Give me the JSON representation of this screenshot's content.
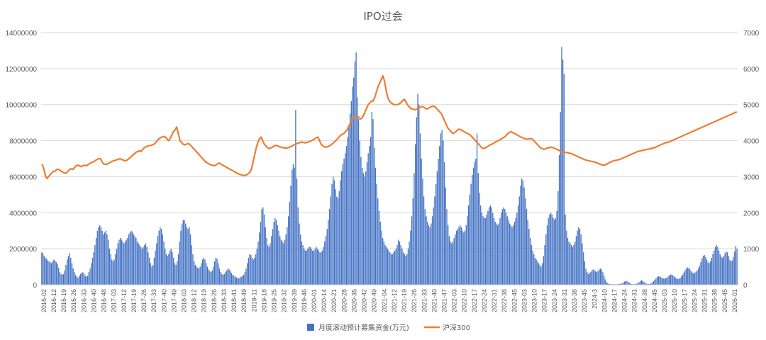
{
  "chart_data": {
    "type": "bar+line",
    "title": "IPO过会",
    "xlabel": "",
    "ylabel": "",
    "y_left": {
      "min": 0,
      "max": 14000000,
      "ticks": [
        "0",
        "2000000",
        "4000000",
        "6000000",
        "8000000",
        "10000000",
        "12000000",
        "14000000"
      ]
    },
    "y_right": {
      "min": 0,
      "max": 7000,
      "ticks": [
        "0",
        "1000",
        "2000",
        "3000",
        "4000",
        "5000",
        "6000",
        "7000"
      ]
    },
    "grid": true,
    "legend_position": "bottom",
    "x_start_week": "2016-02",
    "x_tick_labels": [
      "2016-02",
      "2016-12",
      "2016-19",
      "2016-26",
      "2016-33",
      "2016-40",
      "2016-48",
      "2017-03",
      "2017-12",
      "2017-19",
      "2017-26",
      "2017-33",
      "2017-40",
      "2017-49",
      "2018-03",
      "2018-12",
      "2018-19",
      "2018-26",
      "2018-33",
      "2018-41",
      "2018-49",
      "2019-11",
      "2019-18",
      "2019-25",
      "2019-32",
      "2019-39",
      "2019-46",
      "2020-01",
      "2020-14",
      "2020-21",
      "2020-28",
      "2020-35",
      "2020-42",
      "2020-49",
      "2021-04",
      "2021-12",
      "2021-19",
      "2021-26",
      "2021-33",
      "2021-40",
      "2021-47",
      "2022-03",
      "2022-10",
      "2022-17",
      "2022-24",
      "2022-31",
      "2022-38",
      "2022-45",
      "2023-03",
      "2023-10",
      "2023-17",
      "2023-24",
      "2023-31",
      "2023-38",
      "2023-45",
      "2024-3",
      "2024-10",
      "2024-17",
      "2024-24",
      "2024-31",
      "2024-38",
      "2024-45",
      "2025-03",
      "2025-10",
      "2025-17",
      "2025-24",
      "2025-31",
      "2025-38",
      "2025-45",
      "2026-01"
    ],
    "series": [
      {
        "name": "月度滚动预计募集资金(万元)",
        "type": "bar",
        "axis": "left",
        "color": "#4472C4",
        "values": [
          1800000,
          1750000,
          1600000,
          1500000,
          1450000,
          1350000,
          1300000,
          1250000,
          1200000,
          1300000,
          1400000,
          1350000,
          1250000,
          1150000,
          950000,
          700000,
          600000,
          550000,
          600000,
          800000,
          1100000,
          1400000,
          1600000,
          1750000,
          1500000,
          1200000,
          900000,
          700000,
          550000,
          450000,
          400000,
          500000,
          600000,
          650000,
          700000,
          600000,
          500000,
          450000,
          500000,
          700000,
          900000,
          1200000,
          1500000,
          1800000,
          2200000,
          2600000,
          3000000,
          3200000,
          3300000,
          3200000,
          3000000,
          2800000,
          2900000,
          3000000,
          2800000,
          2500000,
          2000000,
          1700000,
          1400000,
          1300000,
          1400000,
          1700000,
          2000000,
          2300000,
          2500000,
          2600000,
          2500000,
          2400000,
          2300000,
          2400000,
          2500000,
          2600000,
          2800000,
          2900000,
          3000000,
          2950000,
          2800000,
          2700000,
          2600000,
          2400000,
          2300000,
          2200000,
          2100000,
          2000000,
          2100000,
          2200000,
          2300000,
          2100000,
          1800000,
          1500000,
          1200000,
          1000000,
          1100000,
          1500000,
          1900000,
          2300000,
          2700000,
          3000000,
          3200000,
          3100000,
          2800000,
          2400000,
          2000000,
          1700000,
          1600000,
          1700000,
          1900000,
          2000000,
          1800000,
          1500000,
          1200000,
          1100000,
          1300000,
          1700000,
          2400000,
          3000000,
          3400000,
          3600000,
          3600000,
          3400000,
          3200000,
          3100000,
          3200000,
          2800000,
          2200000,
          1700000,
          1300000,
          1100000,
          1000000,
          950000,
          900000,
          1000000,
          1200000,
          1400000,
          1500000,
          1400000,
          1200000,
          1000000,
          850000,
          750000,
          700000,
          800000,
          1000000,
          1300000,
          1500000,
          1450000,
          1200000,
          900000,
          700000,
          600000,
          550000,
          600000,
          700000,
          800000,
          900000,
          850000,
          750000,
          650000,
          550000,
          500000,
          450000,
          400000,
          380000,
          350000,
          400000,
          450000,
          500000,
          550000,
          700000,
          900000,
          1200000,
          1500000,
          1700000,
          1650000,
          1500000,
          1400000,
          1500000,
          1700000,
          2000000,
          2400000,
          2900000,
          3500000,
          4200000,
          4300000,
          3900000,
          3200000,
          2600000,
          2200000,
          2100000,
          2300000,
          2700000,
          3100000,
          3500000,
          3700000,
          3600000,
          3300000,
          3000000,
          2700000,
          2500000,
          2400000,
          2300000,
          2500000,
          2800000,
          3200000,
          3800000,
          4600000,
          5500000,
          6400000,
          6700000,
          6500000,
          9700000,
          5900000,
          4300000,
          3400000,
          2800000,
          2400000,
          2200000,
          2000000,
          1900000,
          1900000,
          2000000,
          2100000,
          2100000,
          2000000,
          1900000,
          1900000,
          2000000,
          2100000,
          2000000,
          1900000,
          1800000,
          1800000,
          1900000,
          2100000,
          2400000,
          2700000,
          3100000,
          3600000,
          4200000,
          4900000,
          5600000,
          6000000,
          5800000,
          5300000,
          4900000,
          4800000,
          5200000,
          5800000,
          6300000,
          6700000,
          7000000,
          7300000,
          7700000,
          8200000,
          8800000,
          9500000,
          10200000,
          11000000,
          11500000,
          12400000,
          12900000,
          10400000,
          9200000,
          8000000,
          7100000,
          6500000,
          6200000,
          6000000,
          6300000,
          6800000,
          7300000,
          7700000,
          8200000,
          9600000,
          9200000,
          7600000,
          6500000,
          5600000,
          4800000,
          4100000,
          3500000,
          3000000,
          2600000,
          2400000,
          2200000,
          2100000,
          2000000,
          1900000,
          1800000,
          1700000,
          1700000,
          1800000,
          1900000,
          2000000,
          2200000,
          2500000,
          2400000,
          2200000,
          2000000,
          1800000,
          1700000,
          1600000,
          1700000,
          2000000,
          2400000,
          3000000,
          3800000,
          4800000,
          6200000,
          7800000,
          9300000,
          10600000,
          10000000,
          8400000,
          7000000,
          5900000,
          4900000,
          4200000,
          3800000,
          3500000,
          3300000,
          3200000,
          3400000,
          3800000,
          4300000,
          4900000,
          5600000,
          6300000,
          7000000,
          7700000,
          8400000,
          8600000,
          8000000,
          6800000,
          5400000,
          4200000,
          3300000,
          2700000,
          2400000,
          2300000,
          2400000,
          2600000,
          2800000,
          3000000,
          3100000,
          3200000,
          3300000,
          3200000,
          3000000,
          2900000,
          3000000,
          3300000,
          3800000,
          4400000,
          5000000,
          5600000,
          6100000,
          6500000,
          6800000,
          7000000,
          8400000,
          6200000,
          5100000,
          4400000,
          4000000,
          3800000,
          3700000,
          3700000,
          3900000,
          4100000,
          4300000,
          4400000,
          4300000,
          4000000,
          3700000,
          3500000,
          3400000,
          3300000,
          3400000,
          3700000,
          4000000,
          4200000,
          4300000,
          4200000,
          4000000,
          3800000,
          3600000,
          3400000,
          3300000,
          3200000,
          3300000,
          3500000,
          3700000,
          4000000,
          4400000,
          4900000,
          5500000,
          5900000,
          5800000,
          5400000,
          4800000,
          4200000,
          3600000,
          3100000,
          2600000,
          2200000,
          1900000,
          1700000,
          1500000,
          1400000,
          1300000,
          1200000,
          1100000,
          1000000,
          1200000,
          1600000,
          2200000,
          2800000,
          3300000,
          3700000,
          3900000,
          4000000,
          3900000,
          3700000,
          3600000,
          3700000,
          4100000,
          5200000,
          7200000,
          9600000,
          13200000,
          12500000,
          11700000,
          3900000,
          3000000,
          2600000,
          2400000,
          2300000,
          2200000,
          2100000,
          2200000,
          2400000,
          2700000,
          3000000,
          3200000,
          3100000,
          2800000,
          2300000,
          1800000,
          1300000,
          900000,
          700000,
          600000,
          650000,
          700000,
          800000,
          850000,
          800000,
          750000,
          700000,
          750000,
          850000,
          900000,
          850000,
          700000,
          500000,
          300000,
          150000,
          80000,
          50000,
          40000,
          30000,
          30000,
          30000,
          30000,
          30000,
          30000,
          40000,
          50000,
          60000,
          80000,
          120000,
          180000,
          220000,
          200000,
          150000,
          100000,
          60000,
          40000,
          30000,
          30000,
          40000,
          60000,
          90000,
          140000,
          200000,
          250000,
          220000,
          160000,
          100000,
          60000,
          40000,
          40000,
          50000,
          80000,
          130000,
          200000,
          280000,
          360000,
          430000,
          470000,
          460000,
          420000,
          380000,
          350000,
          340000,
          360000,
          400000,
          460000,
          520000,
          560000,
          560000,
          520000,
          460000,
          400000,
          350000,
          320000,
          330000,
          380000,
          460000,
          560000,
          680000,
          800000,
          900000,
          960000,
          940000,
          860000,
          760000,
          680000,
          640000,
          660000,
          720000,
          800000,
          900000,
          1050000,
          1250000,
          1450000,
          1600000,
          1650000,
          1550000,
          1400000,
          1250000,
          1200000,
          1300000,
          1500000,
          1700000,
          1900000,
          2100000,
          2200000,
          2100000,
          1900000,
          1700000,
          1550000,
          1500000,
          1600000,
          1750000,
          1850000,
          1800000,
          1600000,
          1400000,
          1300000,
          1350000,
          1550000,
          1850000,
          2150000,
          2000000
        ]
      },
      {
        "name": "沪深300",
        "type": "line",
        "axis": "right",
        "color": "#ED7D31",
        "values": [
          3350,
          3250,
          3050,
          2950,
          3000,
          3050,
          3100,
          3150,
          3150,
          3200,
          3200,
          3180,
          3150,
          3120,
          3100,
          3100,
          3150,
          3200,
          3220,
          3200,
          3250,
          3300,
          3320,
          3300,
          3280,
          3300,
          3320,
          3300,
          3320,
          3350,
          3380,
          3400,
          3420,
          3450,
          3480,
          3500,
          3500,
          3420,
          3350,
          3340,
          3350,
          3370,
          3400,
          3420,
          3440,
          3450,
          3470,
          3480,
          3500,
          3480,
          3460,
          3440,
          3450,
          3480,
          3520,
          3560,
          3600,
          3640,
          3680,
          3700,
          3720,
          3700,
          3750,
          3800,
          3830,
          3850,
          3860,
          3870,
          3880,
          3900,
          3950,
          4000,
          4050,
          4080,
          4100,
          4120,
          4100,
          4050,
          4000,
          4060,
          4150,
          4250,
          4300,
          4380,
          4200,
          4000,
          3950,
          3900,
          3880,
          3900,
          3920,
          3900,
          3850,
          3800,
          3750,
          3700,
          3650,
          3600,
          3550,
          3500,
          3450,
          3400,
          3380,
          3350,
          3330,
          3320,
          3300,
          3320,
          3350,
          3380,
          3360,
          3330,
          3300,
          3280,
          3250,
          3230,
          3200,
          3180,
          3150,
          3130,
          3100,
          3080,
          3060,
          3050,
          3040,
          3030,
          3050,
          3080,
          3120,
          3200,
          3400,
          3600,
          3800,
          3950,
          4050,
          4100,
          4000,
          3900,
          3850,
          3800,
          3780,
          3800,
          3820,
          3850,
          3870,
          3860,
          3840,
          3820,
          3810,
          3800,
          3790,
          3800,
          3810,
          3830,
          3850,
          3880,
          3900,
          3920,
          3930,
          3950,
          3960,
          3950,
          3940,
          3950,
          3960,
          3980,
          4000,
          4020,
          4050,
          4080,
          4100,
          4000,
          3900,
          3850,
          3830,
          3820,
          3830,
          3850,
          3880,
          3920,
          3960,
          4000,
          4050,
          4100,
          4150,
          4180,
          4200,
          4250,
          4300,
          4400,
          4500,
          4600,
          4650,
          4700,
          4700,
          4650,
          4600,
          4620,
          4700,
          4800,
          4900,
          5000,
          5050,
          5100,
          5100,
          5200,
          5350,
          5500,
          5600,
          5700,
          5800,
          5650,
          5400,
          5200,
          5100,
          5050,
          5020,
          5000,
          5000,
          5000,
          5020,
          5050,
          5100,
          5150,
          5100,
          5000,
          4950,
          4900,
          4880,
          4870,
          4860,
          4880,
          4900,
          4920,
          4950,
          4940,
          4900,
          4880,
          4900,
          4920,
          4950,
          4960,
          4940,
          4900,
          4850,
          4800,
          4750,
          4650,
          4550,
          4450,
          4350,
          4300,
          4250,
          4200,
          4220,
          4250,
          4300,
          4320,
          4300,
          4280,
          4250,
          4220,
          4200,
          4180,
          4150,
          4100,
          4050,
          4000,
          3950,
          3900,
          3850,
          3800,
          3780,
          3800,
          3820,
          3850,
          3880,
          3900,
          3920,
          3950,
          3980,
          4000,
          4020,
          4050,
          4080,
          4100,
          4150,
          4200,
          4230,
          4250,
          4220,
          4200,
          4180,
          4150,
          4120,
          4100,
          4080,
          4060,
          4050,
          4040,
          4050,
          4060,
          4040,
          4000,
          3950,
          3900,
          3850,
          3800,
          3780,
          3760,
          3770,
          3790,
          3800,
          3810,
          3820,
          3800,
          3780,
          3760,
          3740,
          3720,
          3700,
          3690,
          3680,
          3670,
          3660,
          3650,
          3640,
          3620,
          3600,
          3580,
          3560,
          3540,
          3520,
          3500,
          3480,
          3460,
          3450,
          3440,
          3430,
          3420,
          3410,
          3400,
          3380,
          3360,
          3340,
          3330,
          3320,
          3330,
          3350,
          3380,
          3400,
          3420,
          3440,
          3450,
          3460,
          3470,
          3480,
          3500,
          3520,
          3540,
          3560,
          3580,
          3600,
          3620,
          3640,
          3660,
          3680,
          3700,
          3710,
          3720,
          3730,
          3740,
          3750,
          3760,
          3770,
          3780,
          3790,
          3800,
          3820,
          3840,
          3860,
          3880,
          3900,
          3920,
          3940,
          3950,
          3960,
          3980,
          4000,
          4020,
          4040,
          4060,
          4080,
          4100,
          4120,
          4140,
          4160,
          4180,
          4200,
          4220,
          4240,
          4260,
          4280,
          4300,
          4320,
          4340,
          4360,
          4380,
          4400,
          4420,
          4440,
          4460,
          4480,
          4500,
          4520,
          4540,
          4560,
          4580,
          4600,
          4620,
          4640,
          4660,
          4680,
          4700,
          4720,
          4740,
          4760,
          4780,
          4800
        ]
      }
    ]
  }
}
